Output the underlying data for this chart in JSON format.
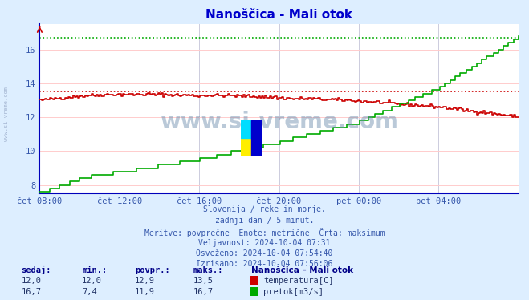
{
  "title": "Nanoščica - Mali otok",
  "background_color": "#ddeeff",
  "plot_bg_color": "#ffffff",
  "grid_color_h": "#ffcccc",
  "grid_color_v": "#ccccdd",
  "x_tick_labels": [
    "čet 08:00",
    "čet 12:00",
    "čet 16:00",
    "čet 20:00",
    "pet 00:00",
    "pet 04:00"
  ],
  "x_tick_positions": [
    0,
    4,
    8,
    12,
    16,
    20
  ],
  "y_min": 7.5,
  "y_max": 17.5,
  "y_ticks": [
    8,
    10,
    12,
    14,
    16
  ],
  "temp_color": "#cc0000",
  "flow_color": "#00aa00",
  "temp_avg": 12.9,
  "temp_max": 13.5,
  "flow_avg": 11.9,
  "flow_max": 16.7,
  "temp_sedaj": 12.0,
  "temp_min_val": 12.0,
  "flow_sedaj": 16.7,
  "flow_min_val": 7.4,
  "subtitle_lines": [
    "Slovenija / reke in morje.",
    "zadnji dan / 5 minut.",
    "Meritve: povprečne  Enote: metrične  Črta: maksimum",
    "Veljavnost: 2024-10-04 07:31",
    "Osveženo: 2024-10-04 07:54:40",
    "Izrisano: 2024-10-04 07:56:06"
  ],
  "watermark": "www.si-vreme.com",
  "left_label": "www.si-vreme.com",
  "axis_color": "#0000bb",
  "title_color": "#0000cc",
  "text_color": "#3355aa",
  "label_color": "#000088",
  "table_header_color": "#000088",
  "table_value_color": "#223366"
}
